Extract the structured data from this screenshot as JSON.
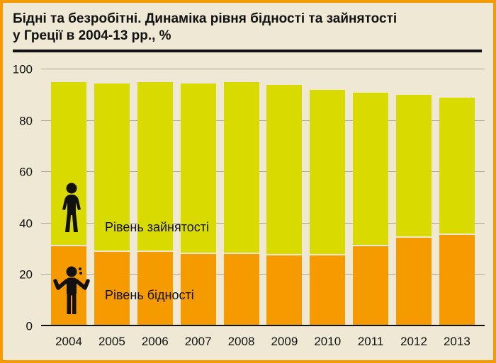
{
  "header": {
    "title_line1": "Бідні та безробітні. Динаміка рівня бідності та зайнятості",
    "title_line2": "у Греції в 2004-13 рр., %"
  },
  "chart_data": {
    "type": "bar",
    "stacked": true,
    "title": "Бідні та безробітні. Динаміка рівня бідності та зайнятості у Греції в 2004-13 рр., %",
    "categories": [
      "2004",
      "2005",
      "2006",
      "2007",
      "2008",
      "2009",
      "2010",
      "2011",
      "2012",
      "2013"
    ],
    "series": [
      {
        "name": "Рівень бідності",
        "color": "#F59B00",
        "values": [
          31,
          29,
          29,
          28,
          28,
          27.5,
          27.5,
          31,
          34.5,
          35.5
        ]
      },
      {
        "name": "Рівень зайнятості",
        "color": "#D9DA00",
        "values": [
          63.5,
          65,
          65.5,
          66,
          66.5,
          66,
          64,
          59.5,
          55,
          53
        ]
      }
    ],
    "totals": [
      94.5,
      94,
      94.5,
      94,
      94.5,
      93.5,
      91.5,
      90.5,
      89.5,
      88.5
    ],
    "ylim": [
      0,
      100
    ],
    "yticks": [
      0,
      20,
      40,
      60,
      80,
      100
    ],
    "grid": true,
    "legend_position": "inside-left"
  },
  "icons": {
    "employment": "person-standing-icon",
    "poverty": "person-shrugging-icon"
  },
  "colors": {
    "background": "#EEE8D4",
    "frame": "#F59B00",
    "grid": "#ACA79A",
    "axis": "#111111",
    "text": "#111111",
    "bar_poverty": "#F59B00",
    "bar_employment": "#D9DA00"
  }
}
